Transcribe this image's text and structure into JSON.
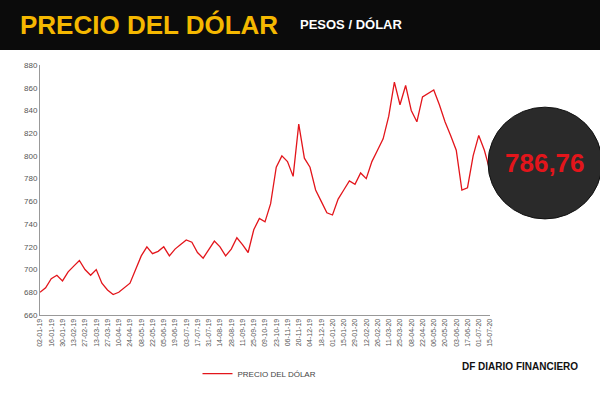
{
  "chart_data": {
    "type": "line",
    "title": "PRECIO DEL DÓLAR",
    "subtitle": "PESOS / DÓLAR",
    "categories": [
      "02-01-19",
      null,
      "16-01-19",
      null,
      "30-01-19",
      null,
      "13-02-19",
      null,
      "27-02-19",
      null,
      "13-03-19",
      null,
      "27-03-19",
      null,
      "10-04-19",
      null,
      "24-04-19",
      null,
      "08-05-19",
      null,
      "22-05-19",
      null,
      "05-06-19",
      null,
      "19-06-19",
      null,
      "03-07-19",
      null,
      "17-07-19",
      null,
      "31-07-19",
      null,
      "14-08-19",
      null,
      "28-08-19",
      null,
      "11-09-19",
      null,
      "25-09-19",
      null,
      "09-10-19",
      null,
      "23-10-19",
      null,
      "06-11-19",
      null,
      "20-11-19",
      null,
      "04-12-19",
      null,
      "18-12-19",
      null,
      "01-01-20",
      null,
      "15-01-20",
      null,
      "29-01-20",
      null,
      "12-02-20",
      null,
      "26-02-20",
      null,
      "11-03-20",
      null,
      "25-03-20",
      null,
      "08-04-20",
      null,
      "22-04-20",
      null,
      "06-05-20",
      null,
      "20-05-20",
      null,
      "03-06-20",
      null,
      "17-06-20",
      null,
      "01-07-20",
      null,
      "15-07-20"
    ],
    "series": [
      {
        "name": "PRECIO DEL DÓLAR",
        "color": "#e3151b",
        "values": [
          680,
          684,
          692,
          695,
          690,
          698,
          703,
          708,
          700,
          695,
          700,
          688,
          682,
          678,
          680,
          684,
          688,
          700,
          712,
          720,
          714,
          716,
          720,
          712,
          718,
          722,
          726,
          724,
          715,
          710,
          718,
          725,
          720,
          712,
          718,
          728,
          722,
          715,
          735,
          745,
          742,
          758,
          790,
          800,
          795,
          782,
          828,
          798,
          790,
          770,
          760,
          750,
          748,
          762,
          770,
          778,
          775,
          785,
          780,
          795,
          805,
          815,
          835,
          865,
          845,
          862,
          840,
          830,
          852,
          855,
          858,
          845,
          830,
          818,
          805,
          770,
          772,
          800,
          818,
          805,
          786.76
        ]
      }
    ],
    "ylim": [
      660,
      880
    ],
    "yticks": [
      660,
      680,
      700,
      720,
      740,
      760,
      780,
      800,
      820,
      840,
      860,
      880
    ],
    "grid": false,
    "legend": "bottom",
    "annotations": [
      "786,76",
      "DF DIARIO FINANCIERO"
    ]
  }
}
